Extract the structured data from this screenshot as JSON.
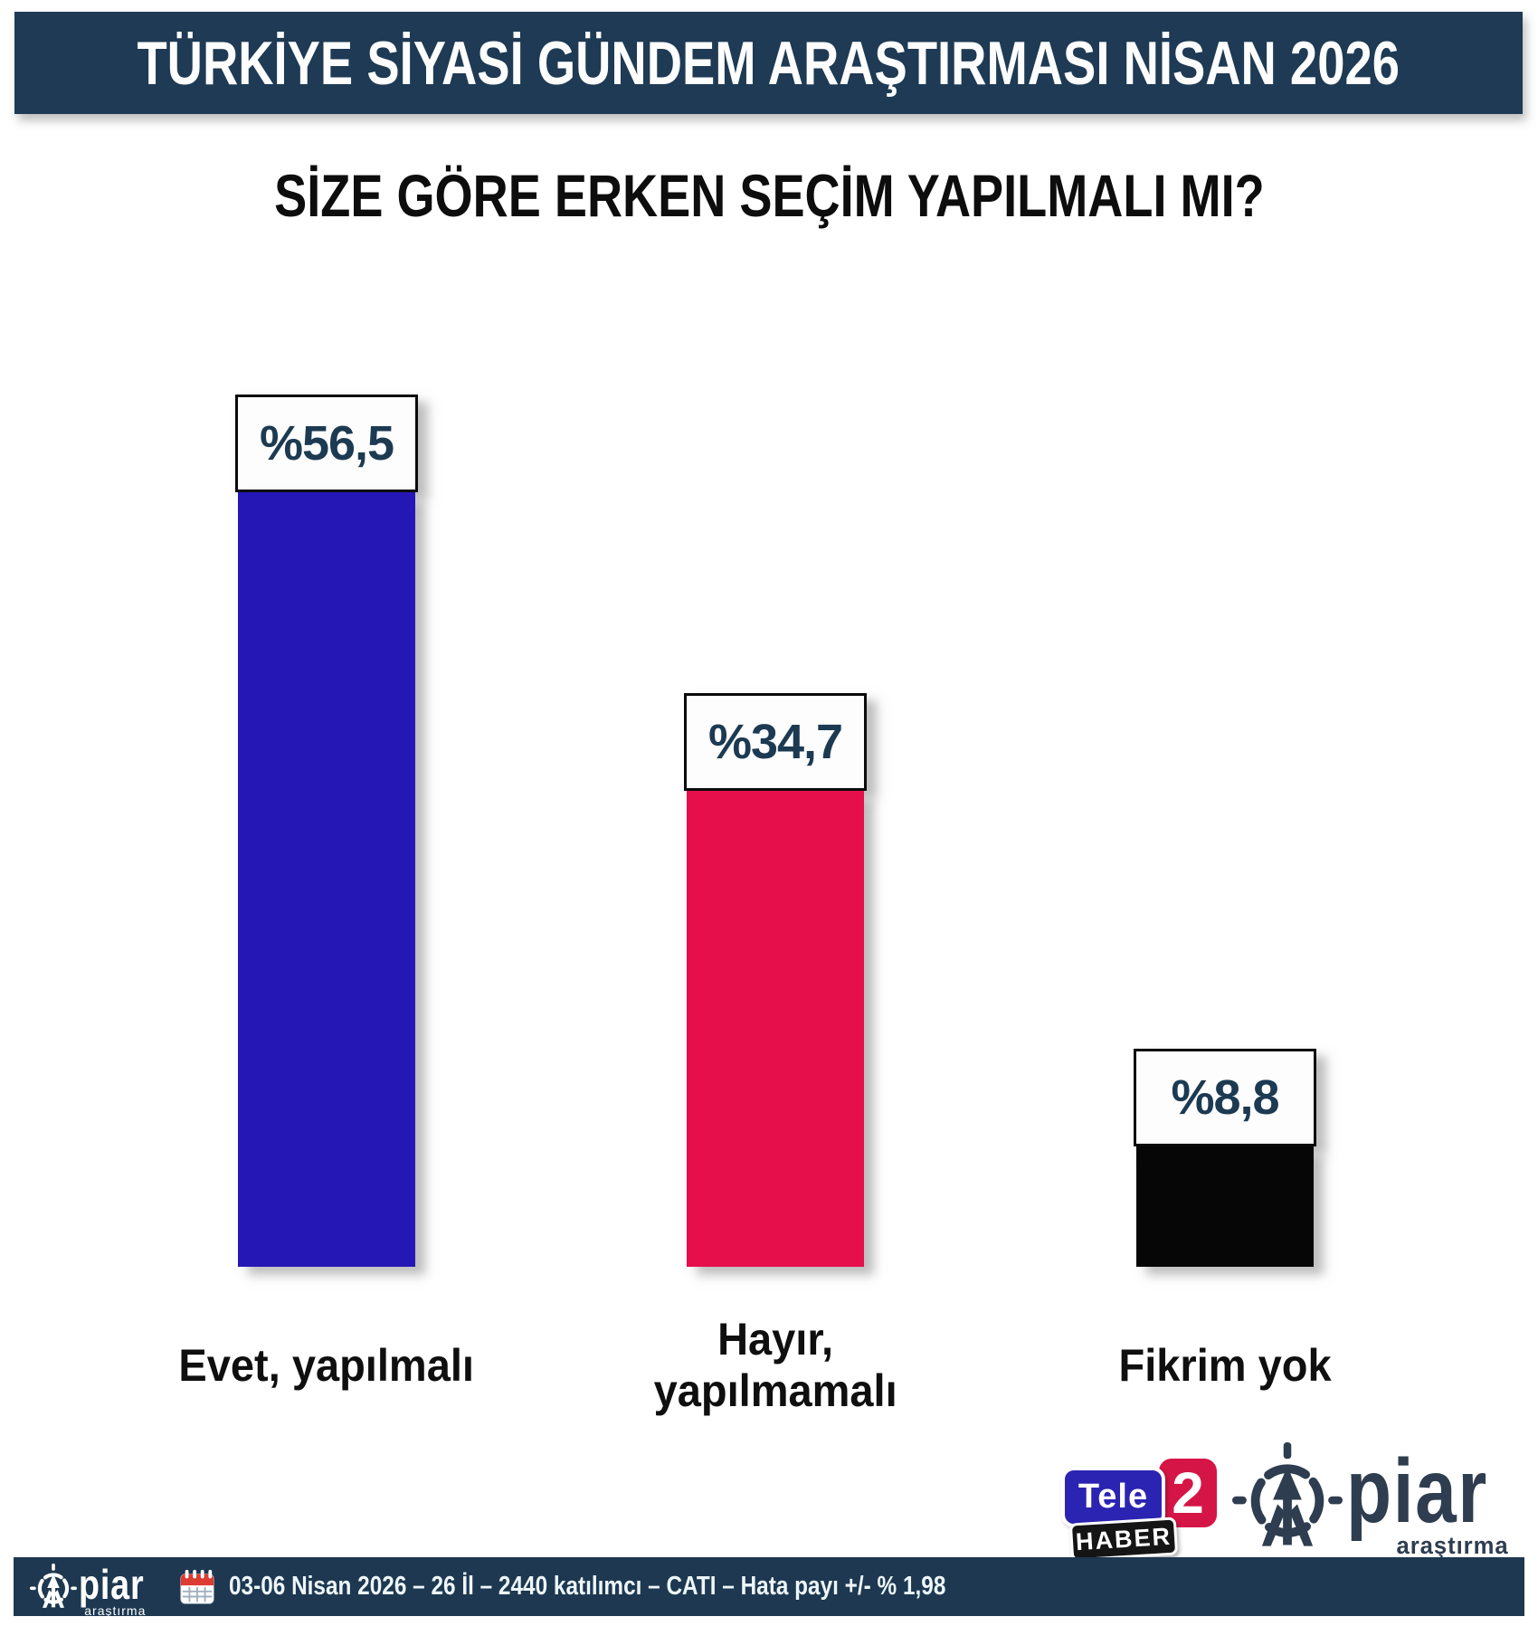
{
  "header": {
    "title": "TÜRKİYE SİYASİ GÜNDEM ARAŞTIRMASI NİSAN 2026",
    "bg": "#1e3a54"
  },
  "question": "SİZE GÖRE ERKEN SEÇİM YAPILMALI MI?",
  "chart_data": {
    "type": "bar",
    "title": "SİZE GÖRE ERKEN SEÇİM YAPILMALI MI?",
    "categories": [
      "Evet, yapılmalı",
      "Hayır, yapılmamalı",
      "Fikrim yok"
    ],
    "category_lines": [
      [
        "Evet, yapılmalı"
      ],
      [
        "Hayır,",
        "yapılmamalı"
      ],
      [
        "Fikrim yok"
      ]
    ],
    "values": [
      56.5,
      34.7,
      8.8
    ],
    "value_labels": [
      "%56,5",
      "%34,7",
      "%8,8"
    ],
    "bar_colors": [
      "#2517b6",
      "#e60e4b",
      "#060606"
    ],
    "value_label_color": "#1c3a52",
    "xlabel": "",
    "ylabel": "",
    "ylim": [
      0,
      60
    ],
    "grid": false,
    "legend": false
  },
  "logos": {
    "tele2": {
      "tele": "Tele",
      "two": "2",
      "haber": "HABER",
      "blue_color": "#2b24b2",
      "red_color": "#d61547",
      "black_color": "#151515"
    },
    "piar": {
      "name": "piar",
      "sub": "araştırma",
      "color": "#2e3d4f"
    }
  },
  "footer": {
    "bg": "#1d3850",
    "piar_name": "piar",
    "piar_sub": "araştırma",
    "text": "03-06 Nisan 2026 – 26 İl – 2440 katılımcı – CATI – Hata payı +/- % 1,98"
  }
}
